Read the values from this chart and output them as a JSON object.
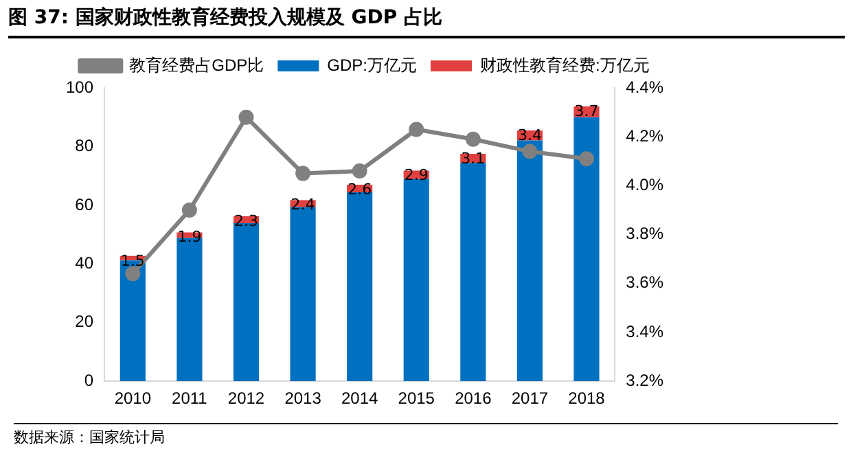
{
  "chart_data": {
    "type": "bar",
    "title": "图 37: 国家财政性教育经费投入规模及 GDP 占比",
    "categories": [
      "2010",
      "2011",
      "2012",
      "2013",
      "2014",
      "2015",
      "2016",
      "2017",
      "2018"
    ],
    "stacked": true,
    "legend": "top",
    "grid": false,
    "series": [
      {
        "name": "GDP:万亿元",
        "color": "#0070c0",
        "values": [
          41.2,
          48.8,
          53.9,
          59.3,
          64.4,
          68.9,
          74.4,
          82.1,
          90.0
        ]
      },
      {
        "name": "财政性教育经费:万亿元",
        "color": "#e04040",
        "values": [
          1.5,
          1.9,
          2.3,
          2.4,
          2.6,
          2.9,
          3.1,
          3.4,
          3.7
        ],
        "value_labels": [
          "1.5",
          "1.9",
          "2.3",
          "2.4",
          "2.6",
          "2.9",
          "3.1",
          "3.4",
          "3.7"
        ]
      },
      {
        "name": "教育经费占GDP比",
        "type": "line",
        "axis": "y2",
        "color": "#808080",
        "marker": "circle",
        "values": [
          3.64,
          3.9,
          4.28,
          4.05,
          4.06,
          4.23,
          4.19,
          4.14,
          4.11
        ]
      }
    ],
    "ylim": [
      0,
      100
    ],
    "yticks": [
      0,
      20,
      40,
      60,
      80,
      100
    ],
    "y2lim": [
      3.2,
      4.4
    ],
    "y2ticks": [
      {
        "value": 3.2,
        "label": "3.2%"
      },
      {
        "value": 3.4,
        "label": "3.4%"
      },
      {
        "value": 3.6,
        "label": "3.6%"
      },
      {
        "value": 3.8,
        "label": "3.8%"
      },
      {
        "value": 4.0,
        "label": "4.0%"
      },
      {
        "value": 4.2,
        "label": "4.2%"
      },
      {
        "value": 4.4,
        "label": "4.4%"
      }
    ],
    "annotations": [
      "数据来源：国家统计局"
    ]
  }
}
